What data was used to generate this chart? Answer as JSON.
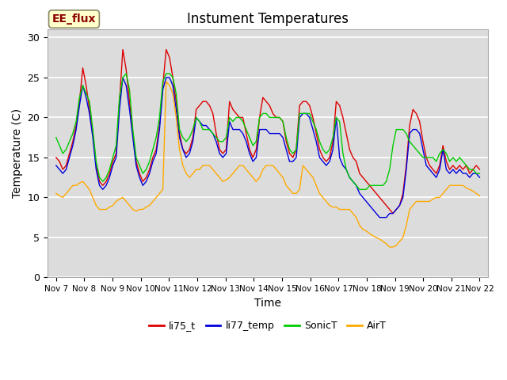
{
  "title": "Instument Temperatures",
  "xlabel": "Time",
  "ylabel": "Temperature (C)",
  "ylim": [
    0,
    31
  ],
  "background_color": "#dcdcdc",
  "figure_color": "#ffffff",
  "annotation_text": "EE_flux",
  "annotation_bg": "#ffffcc",
  "annotation_edge": "#8b0000",
  "xtick_labels": [
    "Nov 7",
    "Nov 8",
    "Nov 9",
    "Nov 10",
    "Nov 11",
    "Nov 12",
    "Nov 13",
    "Nov 14",
    "Nov 15",
    "Nov 16",
    "Nov 17",
    "Nov 18",
    "Nov 19",
    "Nov 20",
    "Nov 21",
    "Nov 22"
  ],
  "ytick_labels": [
    0,
    5,
    10,
    15,
    20,
    25,
    30
  ],
  "legend": [
    "li75_t",
    "li77_temp",
    "SonicT",
    "AirT"
  ],
  "line_colors": [
    "#dd0000",
    "#0000dd",
    "#00cc00",
    "#ffaa00"
  ],
  "li75_t": [
    15.0,
    14.5,
    13.5,
    14.0,
    15.5,
    17.0,
    19.0,
    22.0,
    26.2,
    24.0,
    21.0,
    18.0,
    14.0,
    12.0,
    11.5,
    12.0,
    13.0,
    14.5,
    15.5,
    22.0,
    28.5,
    26.0,
    22.0,
    18.0,
    14.5,
    13.0,
    12.0,
    12.5,
    13.5,
    15.0,
    16.0,
    19.0,
    24.0,
    28.5,
    27.5,
    25.0,
    22.0,
    18.0,
    16.0,
    15.5,
    16.0,
    17.5,
    21.0,
    21.5,
    22.0,
    22.0,
    21.5,
    20.5,
    18.0,
    16.0,
    15.5,
    16.0,
    22.0,
    21.0,
    20.5,
    20.0,
    20.0,
    18.0,
    16.0,
    15.0,
    16.0,
    20.0,
    22.5,
    22.0,
    21.5,
    20.5,
    20.0,
    20.0,
    19.5,
    17.0,
    15.5,
    15.0,
    16.0,
    21.5,
    22.0,
    22.0,
    21.5,
    20.0,
    18.0,
    16.0,
    15.0,
    14.5,
    15.0,
    17.0,
    22.0,
    21.5,
    20.0,
    18.0,
    16.0,
    15.0,
    14.5,
    13.0,
    12.5,
    12.0,
    11.5,
    11.0,
    10.5,
    10.0,
    9.5,
    9.0,
    8.5,
    8.0,
    8.5,
    9.0,
    10.5,
    14.0,
    19.0,
    21.0,
    20.5,
    19.5,
    17.0,
    15.0,
    14.0,
    13.5,
    13.0,
    14.0,
    16.5,
    14.5,
    13.5,
    14.0,
    13.5,
    14.0,
    13.5,
    14.0,
    13.0,
    13.5,
    14.0,
    13.5
  ],
  "li77_temp": [
    14.0,
    13.5,
    13.0,
    13.5,
    15.0,
    16.5,
    18.5,
    21.5,
    24.0,
    22.5,
    20.5,
    17.5,
    13.5,
    11.5,
    11.0,
    11.5,
    12.5,
    14.0,
    15.0,
    21.0,
    25.0,
    24.0,
    21.0,
    17.5,
    14.0,
    12.5,
    11.5,
    12.0,
    13.0,
    14.5,
    15.5,
    18.5,
    23.5,
    25.0,
    25.0,
    24.0,
    21.0,
    17.5,
    16.0,
    15.0,
    15.5,
    17.0,
    20.0,
    19.5,
    19.0,
    19.0,
    18.5,
    18.0,
    17.0,
    15.5,
    15.0,
    15.5,
    19.5,
    18.5,
    18.5,
    18.5,
    18.0,
    17.0,
    15.5,
    14.5,
    15.0,
    18.5,
    18.5,
    18.5,
    18.0,
    18.0,
    18.0,
    18.0,
    17.5,
    16.0,
    14.5,
    14.5,
    15.0,
    20.0,
    20.5,
    20.5,
    20.0,
    18.5,
    17.0,
    15.0,
    14.5,
    14.0,
    14.5,
    16.0,
    20.0,
    15.0,
    14.0,
    13.5,
    12.5,
    12.0,
    11.5,
    10.5,
    10.0,
    9.5,
    9.0,
    8.5,
    8.0,
    7.5,
    7.5,
    7.5,
    8.0,
    8.0,
    8.5,
    9.0,
    10.0,
    13.5,
    18.0,
    18.5,
    18.5,
    18.0,
    16.0,
    14.0,
    13.5,
    13.0,
    12.5,
    13.5,
    16.0,
    13.5,
    13.0,
    13.5,
    13.0,
    13.5,
    13.0,
    13.0,
    12.5,
    13.0,
    13.0,
    12.5
  ],
  "SonicT": [
    17.5,
    16.5,
    15.5,
    16.0,
    17.0,
    18.0,
    19.5,
    22.5,
    24.0,
    23.0,
    22.0,
    18.5,
    14.5,
    12.5,
    12.0,
    12.5,
    13.5,
    15.0,
    16.5,
    22.5,
    25.0,
    25.5,
    23.5,
    18.5,
    15.0,
    14.0,
    13.0,
    13.5,
    14.5,
    16.0,
    17.5,
    20.0,
    24.5,
    25.5,
    25.5,
    25.0,
    23.0,
    18.5,
    17.5,
    17.0,
    17.5,
    18.5,
    20.0,
    19.5,
    18.5,
    18.5,
    18.5,
    18.0,
    17.5,
    17.0,
    17.0,
    17.5,
    20.0,
    19.5,
    20.0,
    20.0,
    19.5,
    18.5,
    17.5,
    16.5,
    17.0,
    20.0,
    20.5,
    20.5,
    20.0,
    20.0,
    20.0,
    20.0,
    19.5,
    17.5,
    16.0,
    15.5,
    16.0,
    20.5,
    20.5,
    20.5,
    20.5,
    19.5,
    18.5,
    17.0,
    16.0,
    15.5,
    16.0,
    17.5,
    20.0,
    19.5,
    15.5,
    13.5,
    12.5,
    12.0,
    11.5,
    11.0,
    11.0,
    11.0,
    11.5,
    11.5,
    11.5,
    11.5,
    11.5,
    12.0,
    13.5,
    16.5,
    18.5,
    18.5,
    18.5,
    18.0,
    17.0,
    16.5,
    16.0,
    15.5,
    15.0,
    15.0,
    15.0,
    15.0,
    14.5,
    15.5,
    16.0,
    15.5,
    14.5,
    15.0,
    14.5,
    15.0,
    14.5,
    14.0,
    13.5,
    13.5,
    13.0,
    13.0
  ],
  "AirT": [
    10.5,
    10.2,
    10.0,
    10.5,
    11.0,
    11.5,
    11.5,
    11.8,
    12.0,
    11.5,
    11.0,
    10.0,
    9.0,
    8.5,
    8.5,
    8.5,
    8.8,
    9.0,
    9.5,
    9.8,
    10.0,
    9.5,
    9.0,
    8.5,
    8.3,
    8.5,
    8.5,
    8.8,
    9.0,
    9.5,
    10.0,
    10.5,
    11.0,
    24.5,
    24.0,
    23.0,
    20.0,
    16.0,
    14.0,
    13.0,
    12.5,
    13.0,
    13.5,
    13.5,
    14.0,
    14.0,
    14.0,
    13.5,
    13.0,
    12.5,
    12.0,
    12.2,
    12.5,
    13.0,
    13.5,
    14.0,
    14.0,
    13.5,
    13.0,
    12.5,
    12.0,
    12.5,
    13.5,
    14.0,
    14.0,
    14.0,
    13.5,
    13.0,
    12.5,
    11.5,
    11.0,
    10.5,
    10.5,
    11.0,
    14.0,
    13.5,
    13.0,
    12.5,
    11.5,
    10.5,
    10.0,
    9.5,
    9.0,
    8.8,
    8.8,
    8.5,
    8.5,
    8.5,
    8.5,
    8.0,
    7.5,
    6.5,
    6.0,
    5.8,
    5.5,
    5.2,
    5.0,
    4.8,
    4.5,
    4.2,
    3.8,
    3.8,
    4.0,
    4.5,
    5.0,
    6.5,
    8.5,
    9.0,
    9.5,
    9.5,
    9.5,
    9.5,
    9.5,
    9.8,
    10.0,
    10.0,
    10.5,
    11.0,
    11.5,
    11.5,
    11.5,
    11.5,
    11.5,
    11.2,
    11.0,
    10.8,
    10.5,
    10.2
  ]
}
